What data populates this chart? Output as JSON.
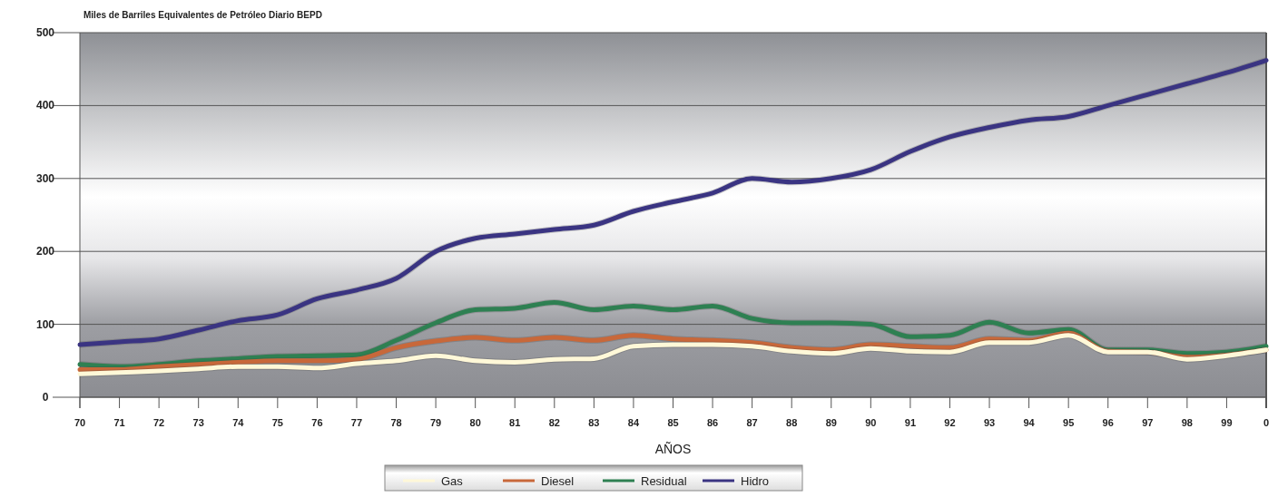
{
  "chart_data": {
    "type": "line",
    "title": "Miles de Barriles Equivalentes de Petróleo Diario BEPD",
    "xlabel": "AÑOS",
    "categories": [
      "70",
      "71",
      "72",
      "73",
      "74",
      "75",
      "76",
      "77",
      "78",
      "79",
      "80",
      "81",
      "82",
      "83",
      "84",
      "85",
      "86",
      "87",
      "88",
      "89",
      "90",
      "91",
      "92",
      "93",
      "94",
      "95",
      "96",
      "97",
      "98",
      "99",
      "0"
    ],
    "series": [
      {
        "name": "Gas",
        "color": "#fff8d8",
        "values": [
          32,
          34,
          36,
          39,
          42,
          42,
          40,
          46,
          50,
          57,
          50,
          48,
          52,
          53,
          70,
          72,
          72,
          70,
          63,
          60,
          67,
          63,
          62,
          75,
          75,
          85,
          62,
          62,
          52,
          57,
          65
        ]
      },
      {
        "name": "Diesel",
        "color": "#c8683a",
        "values": [
          38,
          38,
          42,
          45,
          48,
          50,
          50,
          52,
          68,
          77,
          82,
          78,
          82,
          78,
          85,
          80,
          78,
          75,
          68,
          65,
          72,
          70,
          68,
          80,
          78,
          88,
          63,
          62,
          55,
          58,
          65
        ]
      },
      {
        "name": "Residual",
        "color": "#2e8052",
        "values": [
          45,
          42,
          45,
          50,
          53,
          56,
          57,
          58,
          78,
          102,
          120,
          122,
          130,
          120,
          125,
          120,
          125,
          108,
          102,
          102,
          100,
          83,
          85,
          103,
          88,
          93,
          65,
          65,
          60,
          62,
          70
        ]
      },
      {
        "name": "Hidro",
        "color": "#3a3482",
        "values": [
          72,
          76,
          80,
          92,
          105,
          113,
          135,
          147,
          163,
          200,
          218,
          224,
          230,
          236,
          255,
          268,
          280,
          300,
          295,
          300,
          312,
          337,
          357,
          370,
          380,
          385,
          400,
          415,
          430,
          445,
          462
        ]
      }
    ],
    "ylim": [
      0,
      500
    ],
    "yticks": [
      0,
      100,
      200,
      300,
      400,
      500
    ],
    "grid": "y",
    "legend": "bottom",
    "line_style": "solid"
  }
}
